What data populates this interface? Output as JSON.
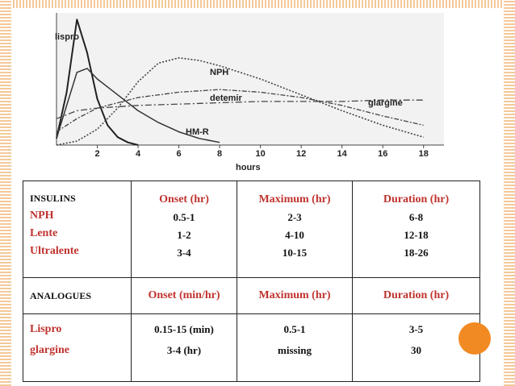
{
  "colors": {
    "accent_red": "#c0332e",
    "frame_orange": "#f4c99a",
    "dot_orange": "#f28a23",
    "text_black": "#111111"
  },
  "chart": {
    "curve_labels": {
      "lispro": "lispro",
      "nph": "NPH",
      "detemir": "detemir",
      "glargine": "glargine",
      "hmr": "HM-R"
    },
    "xlabel": "hours",
    "ticks": [
      "2",
      "4",
      "6",
      "8",
      "10",
      "12",
      "14",
      "16",
      "18"
    ]
  },
  "chart_data": {
    "type": "line",
    "xlabel": "hours",
    "xlim": [
      0,
      19
    ],
    "x_ticks": [
      2,
      4,
      6,
      8,
      10,
      12,
      14,
      16,
      18
    ],
    "series": [
      {
        "name": "lispro",
        "x": [
          0,
          0.5,
          1,
          1.5,
          2,
          2.5,
          3,
          3.5,
          4
        ],
        "y": [
          5,
          40,
          95,
          70,
          35,
          15,
          6,
          2,
          0
        ]
      },
      {
        "name": "HM-R",
        "x": [
          0,
          0.5,
          1,
          1.5,
          2,
          3,
          4,
          5,
          6,
          7,
          8
        ],
        "y": [
          5,
          30,
          55,
          58,
          50,
          38,
          26,
          17,
          10,
          5,
          2
        ]
      },
      {
        "name": "NPH",
        "x": [
          0,
          1,
          2,
          3,
          4,
          5,
          6,
          7,
          8,
          10,
          12,
          14,
          16,
          18
        ],
        "y": [
          0,
          3,
          12,
          28,
          48,
          62,
          66,
          64,
          60,
          50,
          38,
          26,
          15,
          6
        ]
      },
      {
        "name": "detemir",
        "x": [
          0,
          1,
          2,
          4,
          6,
          8,
          10,
          12,
          14,
          16,
          18
        ],
        "y": [
          10,
          20,
          28,
          36,
          40,
          42,
          40,
          36,
          30,
          22,
          15
        ]
      },
      {
        "name": "glargine",
        "x": [
          0,
          1,
          2,
          4,
          6,
          8,
          10,
          12,
          14,
          16,
          18
        ],
        "y": [
          20,
          26,
          28,
          30,
          31,
          32,
          33,
          33,
          33,
          34,
          34
        ]
      }
    ]
  },
  "table": {
    "row1": {
      "left": [
        "INSULINS",
        "NPH",
        "Lente",
        "Ultralente"
      ],
      "onset_header": "Onset (hr)",
      "onset_values": [
        "0.5-1",
        "1-2",
        "3-4"
      ],
      "maximum_header": "Maximum (hr)",
      "maximum_values": [
        "2-3",
        "4-10",
        "10-15"
      ],
      "duration_header": "Duration (hr)",
      "duration_values": [
        "6-8",
        "12-18",
        "18-26"
      ]
    },
    "row2": {
      "left": "ANALOGUES",
      "onset_header": "Onset (min/hr)",
      "maximum_header": "Maximum (hr)",
      "duration_header": "Duration (hr)"
    },
    "row3": {
      "left": [
        "Lispro",
        "glargine"
      ],
      "onset_values": [
        "0.15-15 (min)",
        "3-4 (hr)"
      ],
      "maximum_values": [
        "0.5-1",
        "missing"
      ],
      "duration_values": [
        "3-5",
        "30"
      ]
    }
  }
}
